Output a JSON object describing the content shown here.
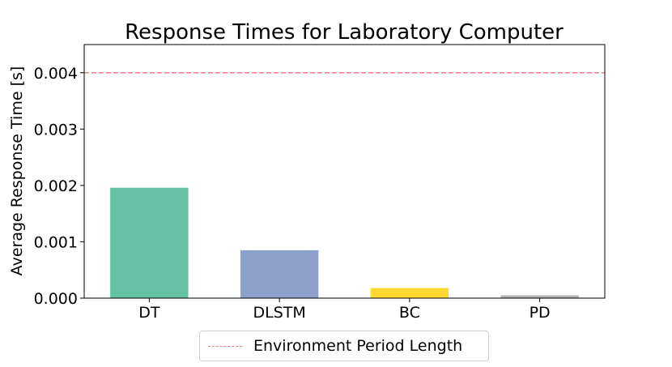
{
  "chart_data": {
    "type": "bar",
    "title": "Response Times for Laboratory Computer",
    "xlabel": "",
    "ylabel": "Average Response Time [s]",
    "categories": [
      "DT",
      "DLSTM",
      "BC",
      "PD"
    ],
    "values": [
      0.00196,
      0.00085,
      0.00018,
      5e-05
    ],
    "bar_colors": [
      "#66c2a5",
      "#8da0cb",
      "#ffd92f",
      "#b3b3b3"
    ],
    "ylim": [
      0,
      0.0045
    ],
    "yticks": [
      "0.000",
      "0.001",
      "0.002",
      "0.003",
      "0.004"
    ],
    "ytick_values": [
      0,
      0.001,
      0.002,
      0.003,
      0.004
    ],
    "reference_line": {
      "value": 0.004,
      "label": "Environment Period Length",
      "color": "#f07f7f",
      "style": "dashed"
    },
    "grid": false,
    "legend": "bottom-center"
  }
}
